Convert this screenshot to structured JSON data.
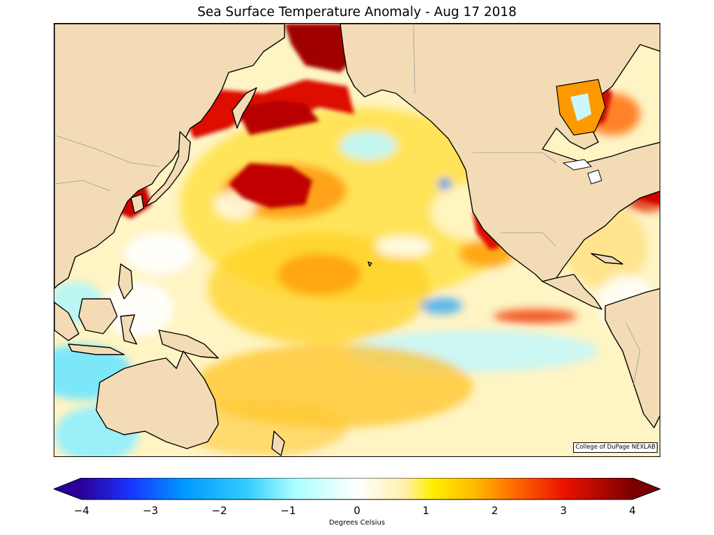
{
  "title": "Sea Surface Temperature Anomaly - Aug 17 2018",
  "credit": "College of DuPage NEXLAB",
  "colorbar": {
    "label": "Degrees Celsius",
    "min": -4,
    "max": 4,
    "ticks": [
      "−4",
      "−3",
      "−2",
      "−1",
      "0",
      "1",
      "2",
      "3",
      "4"
    ],
    "tick_values": [
      -4,
      -3,
      -2,
      -1,
      0,
      1,
      2,
      3,
      4
    ],
    "stops": [
      {
        "value": -4,
        "color": "#2a0099"
      },
      {
        "value": -3.3,
        "color": "#1a33ff"
      },
      {
        "value": -2.5,
        "color": "#0099ff"
      },
      {
        "value": -1.6,
        "color": "#33ccff"
      },
      {
        "value": -0.9,
        "color": "#aaffff"
      },
      {
        "value": 0,
        "color": "#ffffff"
      },
      {
        "value": 0.7,
        "color": "#fff0aa"
      },
      {
        "value": 1.1,
        "color": "#ffee00"
      },
      {
        "value": 1.7,
        "color": "#ffbb00"
      },
      {
        "value": 2.2,
        "color": "#ff7700"
      },
      {
        "value": 3,
        "color": "#ee1100"
      },
      {
        "value": 4,
        "color": "#7a0000"
      }
    ]
  },
  "colors": {
    "land": "#f3dcb5",
    "ocean_base": "#fff6cc",
    "coastline": "#000000",
    "borders": "#999999"
  }
}
